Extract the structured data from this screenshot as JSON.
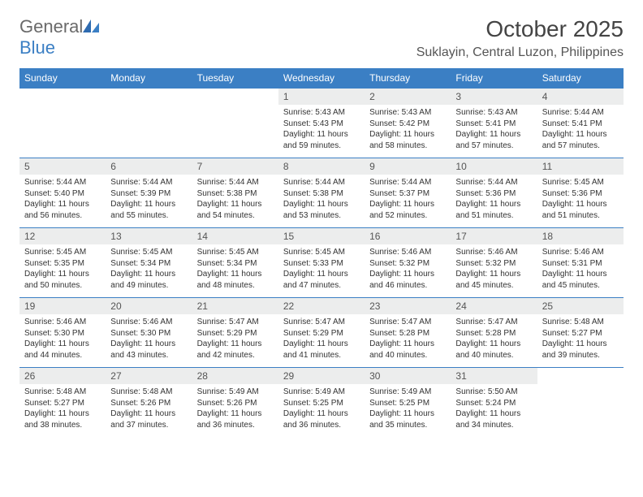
{
  "logo": {
    "text_gray": "General",
    "text_blue": "Blue"
  },
  "title": "October 2025",
  "location": "Suklayin, Central Luzon, Philippines",
  "colors": {
    "header_bg": "#3b7fc4",
    "header_text": "#ffffff",
    "daynum_bg": "#eceded",
    "border": "#3b7fc4",
    "logo_gray": "#6a6a6a",
    "logo_blue": "#3b7fc4"
  },
  "weekdays": [
    "Sunday",
    "Monday",
    "Tuesday",
    "Wednesday",
    "Thursday",
    "Friday",
    "Saturday"
  ],
  "weeks": [
    [
      {
        "empty": true
      },
      {
        "empty": true
      },
      {
        "empty": true
      },
      {
        "day": "1",
        "sunrise": "Sunrise: 5:43 AM",
        "sunset": "Sunset: 5:43 PM",
        "daylight": "Daylight: 11 hours and 59 minutes."
      },
      {
        "day": "2",
        "sunrise": "Sunrise: 5:43 AM",
        "sunset": "Sunset: 5:42 PM",
        "daylight": "Daylight: 11 hours and 58 minutes."
      },
      {
        "day": "3",
        "sunrise": "Sunrise: 5:43 AM",
        "sunset": "Sunset: 5:41 PM",
        "daylight": "Daylight: 11 hours and 57 minutes."
      },
      {
        "day": "4",
        "sunrise": "Sunrise: 5:44 AM",
        "sunset": "Sunset: 5:41 PM",
        "daylight": "Daylight: 11 hours and 57 minutes."
      }
    ],
    [
      {
        "day": "5",
        "sunrise": "Sunrise: 5:44 AM",
        "sunset": "Sunset: 5:40 PM",
        "daylight": "Daylight: 11 hours and 56 minutes."
      },
      {
        "day": "6",
        "sunrise": "Sunrise: 5:44 AM",
        "sunset": "Sunset: 5:39 PM",
        "daylight": "Daylight: 11 hours and 55 minutes."
      },
      {
        "day": "7",
        "sunrise": "Sunrise: 5:44 AM",
        "sunset": "Sunset: 5:38 PM",
        "daylight": "Daylight: 11 hours and 54 minutes."
      },
      {
        "day": "8",
        "sunrise": "Sunrise: 5:44 AM",
        "sunset": "Sunset: 5:38 PM",
        "daylight": "Daylight: 11 hours and 53 minutes."
      },
      {
        "day": "9",
        "sunrise": "Sunrise: 5:44 AM",
        "sunset": "Sunset: 5:37 PM",
        "daylight": "Daylight: 11 hours and 52 minutes."
      },
      {
        "day": "10",
        "sunrise": "Sunrise: 5:44 AM",
        "sunset": "Sunset: 5:36 PM",
        "daylight": "Daylight: 11 hours and 51 minutes."
      },
      {
        "day": "11",
        "sunrise": "Sunrise: 5:45 AM",
        "sunset": "Sunset: 5:36 PM",
        "daylight": "Daylight: 11 hours and 51 minutes."
      }
    ],
    [
      {
        "day": "12",
        "sunrise": "Sunrise: 5:45 AM",
        "sunset": "Sunset: 5:35 PM",
        "daylight": "Daylight: 11 hours and 50 minutes."
      },
      {
        "day": "13",
        "sunrise": "Sunrise: 5:45 AM",
        "sunset": "Sunset: 5:34 PM",
        "daylight": "Daylight: 11 hours and 49 minutes."
      },
      {
        "day": "14",
        "sunrise": "Sunrise: 5:45 AM",
        "sunset": "Sunset: 5:34 PM",
        "daylight": "Daylight: 11 hours and 48 minutes."
      },
      {
        "day": "15",
        "sunrise": "Sunrise: 5:45 AM",
        "sunset": "Sunset: 5:33 PM",
        "daylight": "Daylight: 11 hours and 47 minutes."
      },
      {
        "day": "16",
        "sunrise": "Sunrise: 5:46 AM",
        "sunset": "Sunset: 5:32 PM",
        "daylight": "Daylight: 11 hours and 46 minutes."
      },
      {
        "day": "17",
        "sunrise": "Sunrise: 5:46 AM",
        "sunset": "Sunset: 5:32 PM",
        "daylight": "Daylight: 11 hours and 45 minutes."
      },
      {
        "day": "18",
        "sunrise": "Sunrise: 5:46 AM",
        "sunset": "Sunset: 5:31 PM",
        "daylight": "Daylight: 11 hours and 45 minutes."
      }
    ],
    [
      {
        "day": "19",
        "sunrise": "Sunrise: 5:46 AM",
        "sunset": "Sunset: 5:30 PM",
        "daylight": "Daylight: 11 hours and 44 minutes."
      },
      {
        "day": "20",
        "sunrise": "Sunrise: 5:46 AM",
        "sunset": "Sunset: 5:30 PM",
        "daylight": "Daylight: 11 hours and 43 minutes."
      },
      {
        "day": "21",
        "sunrise": "Sunrise: 5:47 AM",
        "sunset": "Sunset: 5:29 PM",
        "daylight": "Daylight: 11 hours and 42 minutes."
      },
      {
        "day": "22",
        "sunrise": "Sunrise: 5:47 AM",
        "sunset": "Sunset: 5:29 PM",
        "daylight": "Daylight: 11 hours and 41 minutes."
      },
      {
        "day": "23",
        "sunrise": "Sunrise: 5:47 AM",
        "sunset": "Sunset: 5:28 PM",
        "daylight": "Daylight: 11 hours and 40 minutes."
      },
      {
        "day": "24",
        "sunrise": "Sunrise: 5:47 AM",
        "sunset": "Sunset: 5:28 PM",
        "daylight": "Daylight: 11 hours and 40 minutes."
      },
      {
        "day": "25",
        "sunrise": "Sunrise: 5:48 AM",
        "sunset": "Sunset: 5:27 PM",
        "daylight": "Daylight: 11 hours and 39 minutes."
      }
    ],
    [
      {
        "day": "26",
        "sunrise": "Sunrise: 5:48 AM",
        "sunset": "Sunset: 5:27 PM",
        "daylight": "Daylight: 11 hours and 38 minutes."
      },
      {
        "day": "27",
        "sunrise": "Sunrise: 5:48 AM",
        "sunset": "Sunset: 5:26 PM",
        "daylight": "Daylight: 11 hours and 37 minutes."
      },
      {
        "day": "28",
        "sunrise": "Sunrise: 5:49 AM",
        "sunset": "Sunset: 5:26 PM",
        "daylight": "Daylight: 11 hours and 36 minutes."
      },
      {
        "day": "29",
        "sunrise": "Sunrise: 5:49 AM",
        "sunset": "Sunset: 5:25 PM",
        "daylight": "Daylight: 11 hours and 36 minutes."
      },
      {
        "day": "30",
        "sunrise": "Sunrise: 5:49 AM",
        "sunset": "Sunset: 5:25 PM",
        "daylight": "Daylight: 11 hours and 35 minutes."
      },
      {
        "day": "31",
        "sunrise": "Sunrise: 5:50 AM",
        "sunset": "Sunset: 5:24 PM",
        "daylight": "Daylight: 11 hours and 34 minutes."
      },
      {
        "empty": true
      }
    ]
  ]
}
